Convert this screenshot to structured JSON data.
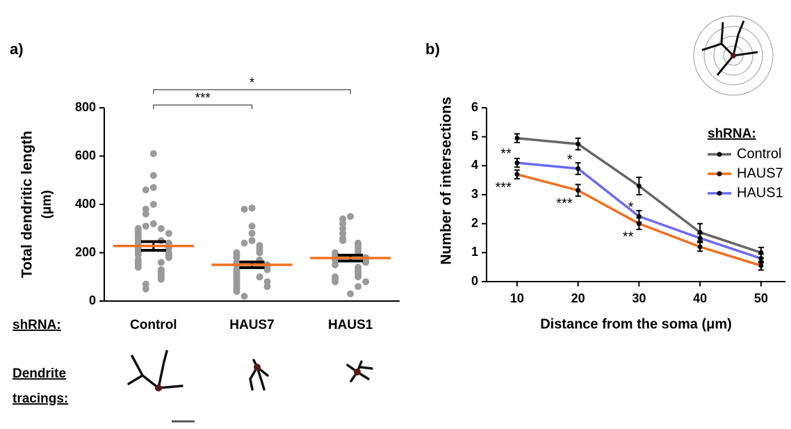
{
  "panel_labels": [
    "a)",
    "b)"
  ],
  "tracings_label": [
    "Dendrite",
    "tracings:"
  ],
  "chart_data": [
    {
      "type": "dot",
      "ylabel": [
        "Total dendritic length",
        "(μm)"
      ],
      "x_row_label": "shRNA:",
      "categories": [
        "Control",
        "HAUS7",
        "HAUS1"
      ],
      "points": [
        [
          610,
          520,
          470,
          460,
          400,
          380,
          360,
          320,
          310,
          300,
          300,
          290,
          280,
          280,
          270,
          260,
          250,
          250,
          240,
          240,
          230,
          220,
          220,
          210,
          200,
          200,
          190,
          190,
          180,
          170,
          160,
          160,
          150,
          140,
          130,
          120,
          110,
          100,
          90,
          70,
          50
        ],
        [
          385,
          380,
          310,
          280,
          250,
          240,
          230,
          220,
          210,
          200,
          200,
          190,
          180,
          170,
          160,
          160,
          150,
          150,
          140,
          130,
          130,
          120,
          110,
          100,
          100,
          90,
          80,
          80,
          70,
          60,
          60,
          50,
          40,
          20
        ],
        [
          350,
          340,
          320,
          300,
          280,
          260,
          250,
          240,
          230,
          220,
          210,
          200,
          200,
          190,
          180,
          180,
          170,
          170,
          160,
          150,
          140,
          130,
          120,
          110,
          100,
          100,
          90,
          80,
          80,
          60,
          30
        ]
      ],
      "point_color": "#9a9a9a",
      "means": [
        228,
        150,
        178
      ],
      "sem": [
        18,
        12,
        12
      ],
      "mean_color": "#f07020",
      "sem_color": "#000000",
      "comparisons": [
        {
          "groups": [
            "Control",
            "HAUS7"
          ],
          "label": "***"
        },
        {
          "groups": [
            "Control",
            "HAUS1"
          ],
          "label": "*"
        }
      ],
      "ylim": [
        0,
        800
      ],
      "yticks": [
        0,
        200,
        400,
        600,
        800
      ]
    },
    {
      "type": "line",
      "ylabel": "Number of intersections",
      "xlabel": "Distance from the soma (μm)",
      "legend_title": "shRNA:",
      "x": [
        10,
        20,
        30,
        40,
        50
      ],
      "series": [
        {
          "name": "Control",
          "color": "#666666",
          "values": [
            4.95,
            4.75,
            3.3,
            1.7,
            1.0
          ],
          "errors": [
            0.15,
            0.2,
            0.3,
            0.3,
            0.18
          ],
          "significance": [
            null,
            null,
            null,
            null,
            null
          ]
        },
        {
          "name": "HAUS7",
          "color": "#f07020",
          "values": [
            3.7,
            3.15,
            2.0,
            1.2,
            0.55
          ],
          "errors": [
            0.15,
            0.2,
            0.2,
            0.15,
            0.15
          ],
          "significance": [
            "***",
            "***",
            "**",
            null,
            null
          ]
        },
        {
          "name": "HAUS1",
          "color": "#6a6af0",
          "values": [
            4.1,
            3.9,
            2.25,
            1.5,
            0.8
          ],
          "errors": [
            0.15,
            0.2,
            0.2,
            0.15,
            0.15
          ],
          "significance": [
            "**",
            "*",
            "*",
            null,
            null
          ]
        }
      ],
      "xlim": [
        5,
        54
      ],
      "ylim": [
        0,
        6
      ],
      "xticks": [
        10,
        20,
        30,
        40,
        50
      ],
      "yticks": [
        0,
        1,
        2,
        3,
        4,
        5,
        6
      ],
      "legend": "upper right"
    }
  ]
}
